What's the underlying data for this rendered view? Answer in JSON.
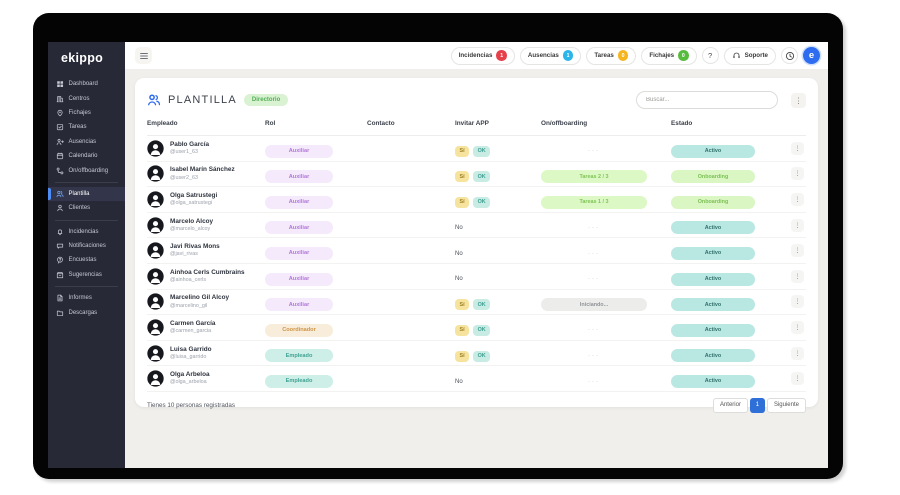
{
  "app": {
    "logo": "ekippo"
  },
  "colors": {
    "accent_blue": "#2e6fd8",
    "sidebar_bg": "#272936",
    "badge_incidencias": "#e6404a",
    "badge_ausencias": "#2bb5ea",
    "badge_tareas": "#f5b51f",
    "badge_fichajes": "#57bb3e"
  },
  "sidebar": {
    "groups": [
      {
        "items": [
          {
            "label": "Dashboard",
            "icon": "dashboard-icon"
          },
          {
            "label": "Centros",
            "icon": "centros-icon"
          },
          {
            "label": "Fichajes",
            "icon": "fichajes-icon"
          },
          {
            "label": "Tareas",
            "icon": "tareas-icon"
          },
          {
            "label": "Ausencias",
            "icon": "ausencias-icon"
          },
          {
            "label": "Calendario",
            "icon": "calendario-icon"
          },
          {
            "label": "On/offboarding",
            "icon": "onoffboarding-icon"
          }
        ]
      },
      {
        "items": [
          {
            "label": "Plantilla",
            "icon": "plantilla-icon",
            "active": true
          },
          {
            "label": "Clientes",
            "icon": "clientes-icon"
          }
        ]
      },
      {
        "items": [
          {
            "label": "Incidencias",
            "icon": "incidencias-icon"
          },
          {
            "label": "Notificaciones",
            "icon": "notificaciones-icon"
          },
          {
            "label": "Encuestas",
            "icon": "encuestas-icon"
          },
          {
            "label": "Sugerencias",
            "icon": "sugerencias-icon"
          }
        ]
      },
      {
        "items": [
          {
            "label": "Informes",
            "icon": "informes-icon"
          },
          {
            "label": "Descargas",
            "icon": "descargas-icon"
          }
        ]
      }
    ]
  },
  "topbar": {
    "nav_buttons": [
      {
        "label": "Incidencias",
        "badge": "1",
        "color": "#e6404a"
      },
      {
        "label": "Ausencias",
        "badge": "1",
        "color": "#2bb5ea"
      },
      {
        "label": "Tareas",
        "badge": "0",
        "color": "#f5b51f"
      },
      {
        "label": "Fichajes",
        "badge": "0",
        "color": "#57bb3e"
      }
    ],
    "help": "?",
    "soporte": "Soporte",
    "avatar_letter": "e"
  },
  "plantilla": {
    "title": "PLANTILLA",
    "badge": "Directorio",
    "search_placeholder": "Buscar...",
    "headers": [
      "Empleado",
      "Rol",
      "Contacto",
      "Invitar APP",
      "On/offboarding",
      "Estado"
    ],
    "rows": [
      {
        "name": "Pablo García",
        "handle": "@user1_63",
        "role": {
          "label": "Auxiliar",
          "style": "purple"
        },
        "invited": true,
        "onoff": {
          "style": "dots",
          "label": ""
        },
        "estado": {
          "label": "Activo",
          "style": "teal"
        }
      },
      {
        "name": "Isabel Marín Sánchez",
        "handle": "@user2_63",
        "role": {
          "label": "Auxiliar",
          "style": "purple"
        },
        "invited": true,
        "onoff": {
          "style": "green",
          "label": "Tareas 2 / 3"
        },
        "estado": {
          "label": "Onboarding",
          "style": "green"
        }
      },
      {
        "name": "Olga Satrustegi",
        "handle": "@olga_satrustegi",
        "role": {
          "label": "Auxiliar",
          "style": "purple"
        },
        "invited": true,
        "onoff": {
          "style": "green",
          "label": "Tareas 1 / 3"
        },
        "estado": {
          "label": "Onboarding",
          "style": "green"
        }
      },
      {
        "name": "Marcelo Alcoy",
        "handle": "@marcelo_alcoy",
        "role": {
          "label": "Auxiliar",
          "style": "purple"
        },
        "invited": false,
        "onoff": {
          "style": "dots",
          "label": ""
        },
        "estado": {
          "label": "Activo",
          "style": "teal"
        }
      },
      {
        "name": "Javi Rivas Mons",
        "handle": "@javi_rivas",
        "role": {
          "label": "Auxiliar",
          "style": "purple"
        },
        "invited": false,
        "onoff": {
          "style": "dots",
          "label": ""
        },
        "estado": {
          "label": "Activo",
          "style": "teal"
        }
      },
      {
        "name": "Ainhoa Cerls Cumbrains",
        "handle": "@ainhoa_cerls",
        "role": {
          "label": "Auxiliar",
          "style": "purple"
        },
        "invited": false,
        "onoff": {
          "style": "dots",
          "label": ""
        },
        "estado": {
          "label": "Activo",
          "style": "teal"
        }
      },
      {
        "name": "Marcelino Gil Alcoy",
        "handle": "@marcelino_gil",
        "role": {
          "label": "Auxiliar",
          "style": "purple"
        },
        "invited": true,
        "onoff": {
          "style": "gray",
          "label": "Iniciando..."
        },
        "estado": {
          "label": "Activo",
          "style": "teal"
        }
      },
      {
        "name": "Carmen García",
        "handle": "@carmen_garcia",
        "role": {
          "label": "Coordinador",
          "style": "orange"
        },
        "invited": true,
        "onoff": {
          "style": "dots",
          "label": ""
        },
        "estado": {
          "label": "Activo",
          "style": "teal"
        }
      },
      {
        "name": "Luisa Garrido",
        "handle": "@luisa_garrido",
        "role": {
          "label": "Empleado",
          "style": "teal"
        },
        "invited": true,
        "onoff": {
          "style": "dots",
          "label": ""
        },
        "estado": {
          "label": "Activo",
          "style": "teal"
        }
      },
      {
        "name": "Olga Arbeloa",
        "handle": "@olga_arbeloa",
        "role": {
          "label": "Empleado",
          "style": "teal"
        },
        "invited": false,
        "onoff": {
          "style": "dots",
          "label": ""
        },
        "estado": {
          "label": "Activo",
          "style": "teal"
        }
      }
    ],
    "footer": "Tienes 10 personas registradas",
    "pagination": {
      "prev": "Anterior",
      "current": "1",
      "next": "Siguiente"
    }
  },
  "labels": {
    "yes": "Sí",
    "ok": "OK",
    "no": "No",
    "empty": "···"
  }
}
